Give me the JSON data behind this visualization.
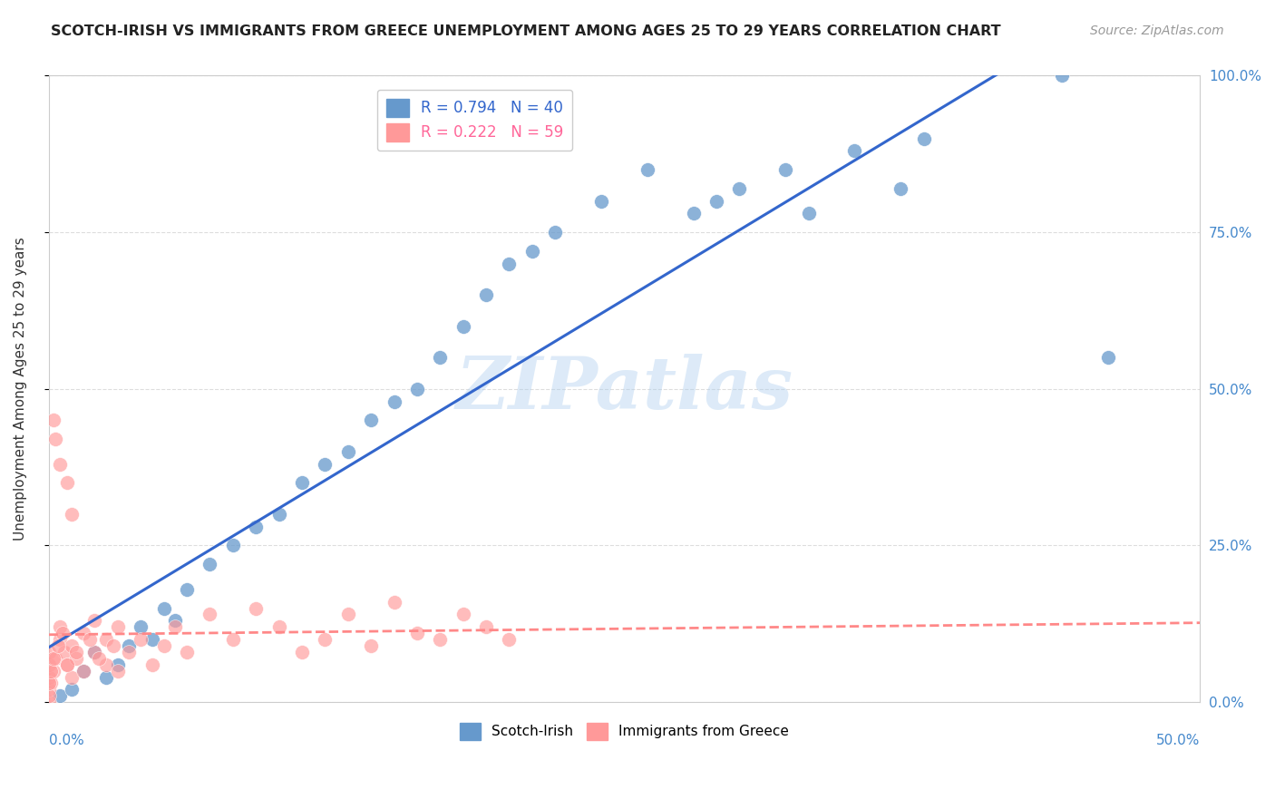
{
  "title": "SCOTCH-IRISH VS IMMIGRANTS FROM GREECE UNEMPLOYMENT AMONG AGES 25 TO 29 YEARS CORRELATION CHART",
  "source": "Source: ZipAtlas.com",
  "xlabel_bottom_left": "0.0%",
  "xlabel_bottom_right": "50.0%",
  "ylabel": "Unemployment Among Ages 25 to 29 years",
  "ylabel_right_ticks": [
    "0.0%",
    "25.0%",
    "50.0%",
    "75.0%",
    "100.0%"
  ],
  "ylabel_right_values": [
    0.0,
    25.0,
    50.0,
    75.0,
    100.0
  ],
  "xlim": [
    0.0,
    50.0
  ],
  "ylim": [
    0.0,
    100.0
  ],
  "watermark": "ZIPatlas",
  "legend_blue_r": "R = 0.794",
  "legend_blue_n": "N = 40",
  "legend_pink_r": "R = 0.222",
  "legend_pink_n": "N = 59",
  "blue_color": "#6699CC",
  "pink_color": "#FF9999",
  "blue_line_color": "#3366CC",
  "pink_line_color": "#FF8888",
  "grid_color": "#DDDDDD",
  "blue_x": [
    0.5,
    1.0,
    1.5,
    2.0,
    2.5,
    3.0,
    3.5,
    4.0,
    4.5,
    5.0,
    5.5,
    6.0,
    7.0,
    8.0,
    9.0,
    10.0,
    11.0,
    12.0,
    13.0,
    14.0,
    15.0,
    16.0,
    17.0,
    18.0,
    19.0,
    20.0,
    21.0,
    22.0,
    24.0,
    26.0,
    28.0,
    29.0,
    30.0,
    32.0,
    33.0,
    35.0,
    37.0,
    38.0,
    44.0,
    46.0
  ],
  "blue_y": [
    1.0,
    2.0,
    5.0,
    8.0,
    4.0,
    6.0,
    9.0,
    12.0,
    10.0,
    15.0,
    13.0,
    18.0,
    22.0,
    25.0,
    28.0,
    30.0,
    35.0,
    38.0,
    40.0,
    45.0,
    48.0,
    50.0,
    55.0,
    60.0,
    65.0,
    70.0,
    72.0,
    75.0,
    80.0,
    85.0,
    78.0,
    80.0,
    82.0,
    85.0,
    78.0,
    88.0,
    82.0,
    90.0,
    100.0,
    55.0
  ],
  "pink_x": [
    0.0,
    0.0,
    0.0,
    0.0,
    0.0,
    0.1,
    0.2,
    0.3,
    0.5,
    0.5,
    0.7,
    0.8,
    1.0,
    1.0,
    1.2,
    1.5,
    1.5,
    2.0,
    2.0,
    2.5,
    2.5,
    3.0,
    3.0,
    3.5,
    4.0,
    4.5,
    5.0,
    5.5,
    6.0,
    7.0,
    8.0,
    9.0,
    10.0,
    11.0,
    12.0,
    13.0,
    14.0,
    15.0,
    16.0,
    17.0,
    18.0,
    19.0,
    20.0,
    0.2,
    0.3,
    0.5,
    0.8,
    1.0,
    0.0,
    0.0,
    0.1,
    0.2,
    0.4,
    0.6,
    0.8,
    1.2,
    1.8,
    2.2,
    2.8
  ],
  "pink_y": [
    0.0,
    2.0,
    4.0,
    6.0,
    8.0,
    3.0,
    5.0,
    7.0,
    10.0,
    12.0,
    8.0,
    6.0,
    4.0,
    9.0,
    7.0,
    5.0,
    11.0,
    8.0,
    13.0,
    10.0,
    6.0,
    12.0,
    5.0,
    8.0,
    10.0,
    6.0,
    9.0,
    12.0,
    8.0,
    14.0,
    10.0,
    15.0,
    12.0,
    8.0,
    10.0,
    14.0,
    9.0,
    16.0,
    11.0,
    10.0,
    14.0,
    12.0,
    10.0,
    45.0,
    42.0,
    38.0,
    35.0,
    30.0,
    1.0,
    3.0,
    5.0,
    7.0,
    9.0,
    11.0,
    6.0,
    8.0,
    10.0,
    7.0,
    9.0
  ]
}
